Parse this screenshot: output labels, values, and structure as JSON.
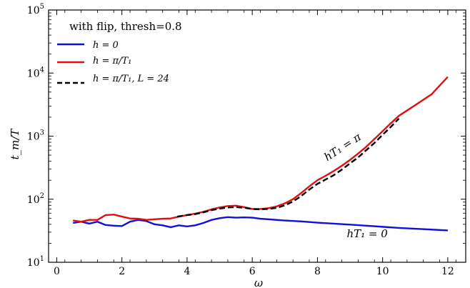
{
  "chart_data": {
    "type": "line",
    "annotation": "with flip, thresh=0.8",
    "xlabel": "ω",
    "ylabel": "t_m/T",
    "xlim": [
      -0.25,
      12.55
    ],
    "ylim": [
      10,
      100000
    ],
    "y_scale": "log",
    "x_ticks": [
      0,
      2,
      4,
      6,
      8,
      10,
      12
    ],
    "x_tick_labels": [
      "0",
      "2",
      "4",
      "6",
      "8",
      "10",
      "12"
    ],
    "y_ticks": [
      10,
      100,
      1000,
      10000,
      100000
    ],
    "y_tick_labels": [
      {
        "base": "10",
        "exp": "1"
      },
      {
        "base": "10",
        "exp": "2"
      },
      {
        "base": "10",
        "exp": "3"
      },
      {
        "base": "10",
        "exp": "4"
      },
      {
        "base": "10",
        "exp": "5"
      }
    ],
    "curve_labels": [
      {
        "text": "hT₁ = π",
        "x": 8.3,
        "y": 400,
        "rotate_deg": -33
      },
      {
        "text": "hT₁ = 0",
        "x": 8.9,
        "y": 25,
        "rotate_deg": 0
      }
    ],
    "legend": {
      "position": "top-left",
      "entries": [
        {
          "label": "h = 0",
          "color": "#1010d8",
          "dash": "solid"
        },
        {
          "label": "h = π/T₁",
          "color": "#e01010",
          "dash": "solid"
        },
        {
          "label": "h = π/T₁, L = 24",
          "color": "#000000",
          "dash": "dashed"
        }
      ]
    },
    "series": [
      {
        "color": "#1010d8",
        "dash": "solid",
        "points": [
          [
            0.5,
            42
          ],
          [
            0.75,
            44
          ],
          [
            1.0,
            41
          ],
          [
            1.25,
            44
          ],
          [
            1.5,
            39
          ],
          [
            1.75,
            38
          ],
          [
            2.0,
            37.5
          ],
          [
            2.25,
            44
          ],
          [
            2.5,
            47
          ],
          [
            2.75,
            45
          ],
          [
            3.0,
            40
          ],
          [
            3.25,
            38.5
          ],
          [
            3.5,
            36
          ],
          [
            3.75,
            38.5
          ],
          [
            4.0,
            37
          ],
          [
            4.25,
            38.5
          ],
          [
            4.5,
            42
          ],
          [
            4.75,
            47
          ],
          [
            5.0,
            50
          ],
          [
            5.25,
            52
          ],
          [
            5.5,
            51
          ],
          [
            5.75,
            51.5
          ],
          [
            6.0,
            51
          ],
          [
            6.25,
            49
          ],
          [
            6.5,
            48
          ],
          [
            7.0,
            46
          ],
          [
            7.5,
            44.5
          ],
          [
            8.0,
            42.5
          ],
          [
            8.5,
            41
          ],
          [
            9.0,
            39.5
          ],
          [
            9.5,
            38
          ],
          [
            10.0,
            36.5
          ],
          [
            10.5,
            35
          ],
          [
            11.0,
            34
          ],
          [
            11.5,
            33
          ],
          [
            12.0,
            32
          ]
        ]
      },
      {
        "color": "#e01010",
        "dash": "solid",
        "points": [
          [
            0.5,
            46
          ],
          [
            0.75,
            44
          ],
          [
            1.0,
            47
          ],
          [
            1.25,
            47
          ],
          [
            1.5,
            56
          ],
          [
            1.75,
            57
          ],
          [
            2.0,
            53
          ],
          [
            2.25,
            49.5
          ],
          [
            2.5,
            49
          ],
          [
            2.75,
            47
          ],
          [
            3.0,
            48
          ],
          [
            3.25,
            49
          ],
          [
            3.5,
            49.5
          ],
          [
            3.75,
            53
          ],
          [
            4.0,
            56
          ],
          [
            4.25,
            59
          ],
          [
            4.5,
            63
          ],
          [
            4.75,
            69
          ],
          [
            5.0,
            74
          ],
          [
            5.25,
            78
          ],
          [
            5.5,
            79
          ],
          [
            5.75,
            75
          ],
          [
            6.0,
            70
          ],
          [
            6.25,
            70
          ],
          [
            6.5,
            72
          ],
          [
            6.75,
            77
          ],
          [
            7.0,
            86
          ],
          [
            7.25,
            100
          ],
          [
            7.5,
            125
          ],
          [
            7.75,
            160
          ],
          [
            8.0,
            200
          ],
          [
            8.25,
            235
          ],
          [
            8.5,
            280
          ],
          [
            8.75,
            340
          ],
          [
            9.0,
            420
          ],
          [
            9.25,
            530
          ],
          [
            9.5,
            680
          ],
          [
            9.75,
            900
          ],
          [
            10.0,
            1200
          ],
          [
            10.25,
            1600
          ],
          [
            10.5,
            2100
          ],
          [
            11.0,
            3100
          ],
          [
            11.5,
            4600
          ],
          [
            12.0,
            8700
          ]
        ]
      },
      {
        "color": "#000000",
        "dash": "dashed",
        "points": [
          [
            3.7,
            53
          ],
          [
            4.0,
            56
          ],
          [
            4.25,
            58
          ],
          [
            4.5,
            62
          ],
          [
            4.75,
            67
          ],
          [
            5.0,
            71
          ],
          [
            5.25,
            74
          ],
          [
            5.5,
            75
          ],
          [
            5.75,
            73
          ],
          [
            6.0,
            70
          ],
          [
            6.25,
            69
          ],
          [
            6.5,
            70
          ],
          [
            6.75,
            73
          ],
          [
            7.0,
            80
          ],
          [
            7.25,
            92
          ],
          [
            7.5,
            112
          ],
          [
            7.75,
            142
          ],
          [
            8.0,
            175
          ],
          [
            8.25,
            205
          ],
          [
            8.5,
            240
          ],
          [
            8.75,
            295
          ],
          [
            9.0,
            370
          ],
          [
            9.25,
            460
          ],
          [
            9.5,
            600
          ],
          [
            9.75,
            780
          ],
          [
            10.0,
            1050
          ],
          [
            10.25,
            1400
          ],
          [
            10.5,
            1900
          ]
        ]
      }
    ]
  }
}
